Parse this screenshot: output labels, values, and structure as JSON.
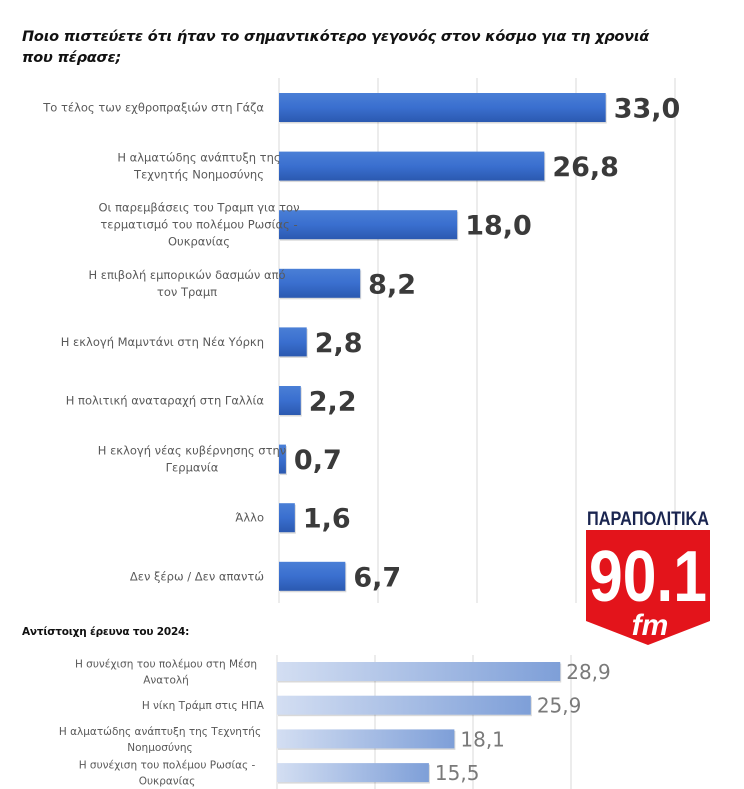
{
  "title": "Ποιο πιστεύετε ότι ήταν το σημαντικότερο γεγονός στον κόσμο για τη χρονιά που πέρασε;",
  "subtitle": "Αντίστοιχη έρευνα του 2024:",
  "logo": {
    "brand": "ΠΑΡΑΠΟΛΙΤΙΚΑ",
    "frequency": "90.1",
    "band": "fm",
    "red": "#e3141b",
    "navy": "#1a2550"
  },
  "colors": {
    "bar_main": "#3a6fcf",
    "bar_main_dark": "#2b59b0",
    "bar_2024_light": "#d3def2",
    "bar_2024_dark": "#7e9fd8",
    "grid": "#d9d9d9"
  },
  "chart_data": [
    {
      "type": "bar",
      "orientation": "horizontal",
      "title": "Ποιο πιστεύετε ότι ήταν το σημαντικότερο γεγονός στον κόσμο για τη χρονιά που πέρασε;",
      "categories": [
        [
          "Το τέλος των εχθροπραξιών στη Γάζα"
        ],
        [
          "Η αλματώδης ανάπτυξη της",
          "Τεχνητής Νοημοσύνης"
        ],
        [
          "Οι παρεμβάσεις του Τραμπ  για τον",
          "τερματισμό του πολέμου Ρωσίας -",
          "Ουκρανίας"
        ],
        [
          "Η επιβολή εμπορικών δασμών από",
          "τον Τραμπ"
        ],
        [
          "Η εκλογή Μαμντάνι στη Νέα Υόρκη"
        ],
        [
          "Η πολιτική αναταραχή στη Γαλλία"
        ],
        [
          "Η εκλογή νέας κυβέρνησης στην",
          "Γερμανία"
        ],
        [
          "Άλλο"
        ],
        [
          "Δεν ξέρω / Δεν απαντώ"
        ]
      ],
      "values": [
        33.0,
        26.8,
        18.0,
        8.2,
        2.8,
        2.2,
        0.7,
        1.6,
        6.7
      ],
      "value_labels": [
        "33,0",
        "26,8",
        "18,0",
        "8,2",
        "2,8",
        "2,2",
        "0,7",
        "1,6",
        "6,7"
      ],
      "xlim": [
        0,
        40
      ],
      "grid": true,
      "grid_step": 10
    },
    {
      "type": "bar",
      "orientation": "horizontal",
      "title": "Αντίστοιχη έρευνα του 2024:",
      "categories": [
        [
          "Η συνέχιση του πολέμου στη Μέση",
          "Ανατολή"
        ],
        [
          "Η νίκη Τράμπ στις ΗΠΑ"
        ],
        [
          "Η αλματώδης ανάπτυξη της Τεχνητής",
          "Νοημοσύνης"
        ],
        [
          "Η συνέχιση του πολέμου Ρωσίας -",
          "Ουκρανίας"
        ]
      ],
      "values": [
        28.9,
        25.9,
        18.1,
        15.5
      ],
      "value_labels": [
        "28,9",
        "25,9",
        "18,1",
        "15,5"
      ],
      "xlim": [
        0,
        30
      ],
      "grid": true,
      "grid_step": 10
    }
  ]
}
